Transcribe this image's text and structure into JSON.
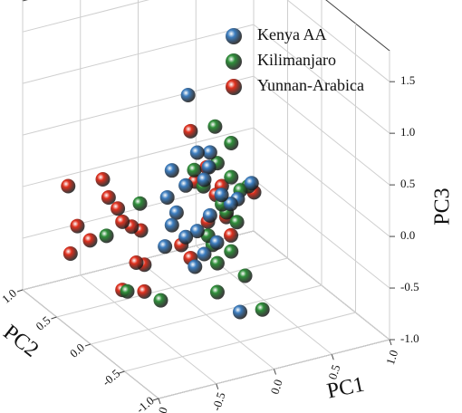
{
  "chart_data": {
    "type": "scatter3d",
    "x_label": "PC1",
    "y_label": "PC2",
    "z_label": "PC3",
    "xlim": [
      -1,
      1
    ],
    "ylim": [
      -1,
      1
    ],
    "zlim": [
      -1,
      1.8
    ],
    "xticks": [
      {
        "value": -1,
        "label": "-1.0"
      },
      {
        "value": -0.5,
        "label": "-0.5"
      },
      {
        "value": 0,
        "label": "0.0"
      },
      {
        "value": 0.5,
        "label": "0.5"
      },
      {
        "value": 1,
        "label": "1.0"
      }
    ],
    "yticks": [
      {
        "value": -1,
        "label": "-1.0"
      },
      {
        "value": -0.5,
        "label": "-0.5"
      },
      {
        "value": 0,
        "label": "0.0"
      },
      {
        "value": 0.5,
        "label": "0.5"
      },
      {
        "value": 1,
        "label": "1.0"
      }
    ],
    "zticks": [
      {
        "value": -1,
        "label": "-1.0"
      },
      {
        "value": -0.5,
        "label": "-0.5"
      },
      {
        "value": 0,
        "label": "0.0"
      },
      {
        "value": 0.5,
        "label": "0.5"
      },
      {
        "value": 1,
        "label": "1.0"
      },
      {
        "value": 1.5,
        "label": "1.5"
      }
    ],
    "grid": true,
    "legend": "top-right",
    "series": [
      {
        "name": "Kenya AA",
        "color": "#3d7ec0",
        "x": [
          -0.45,
          -0.37,
          -0.26,
          -0.59,
          -0.47,
          -0.31,
          -0.63,
          -0.55,
          -0.59,
          -0.47,
          -0.37,
          -0.26,
          -0.16,
          0.1,
          -0.02,
          -0.2,
          -0.31,
          -0.39,
          -0.65,
          0.0,
          -0.27,
          -0.08
        ],
        "y": [
          -0.5,
          -0.5,
          -0.5,
          -0.5,
          -0.5,
          -0.5,
          -0.5,
          -0.5,
          -0.5,
          -0.5,
          -0.5,
          -0.5,
          -0.5,
          -0.5,
          -0.5,
          -0.5,
          -0.5,
          -0.5,
          -0.5,
          -0.5,
          -0.5,
          -0.5
        ],
        "z": [
          1.52,
          0.94,
          0.91,
          0.83,
          0.65,
          0.66,
          0.58,
          0.41,
          0.3,
          0.15,
          0.18,
          0.3,
          0.47,
          0.51,
          0.39,
          0.02,
          -0.06,
          -0.16,
          0.11,
          -0.71,
          0.77,
          0.36
        ]
      },
      {
        "name": "Kilimanjaro",
        "color": "#2f8f3a",
        "x": [
          -0.04,
          0.1,
          -0.02,
          -0.22,
          0.1,
          0.18,
          0.25,
          0.02,
          0.06,
          0.15,
          -0.06,
          -0.02,
          0.1,
          -0.69,
          -0.98,
          -0.8,
          -0.51,
          -0.02,
          0.37,
          0.22,
          -0.14,
          -0.1
        ],
        "y": [
          -0.2,
          -0.2,
          -0.2,
          -0.2,
          -0.2,
          -0.2,
          -0.2,
          -0.2,
          -0.2,
          -0.2,
          -0.2,
          -0.2,
          -0.2,
          -0.2,
          -0.2,
          -0.2,
          -0.2,
          -0.2,
          -0.2,
          -0.2,
          -0.2,
          -0.2
        ],
        "z": [
          0.94,
          0.74,
          0.58,
          0.57,
          0.41,
          0.26,
          0.28,
          0.17,
          0.08,
          -0.04,
          -0.2,
          -0.39,
          -0.31,
          0.38,
          0.15,
          -0.44,
          -0.61,
          -0.67,
          -0.95,
          -0.58,
          0.39,
          -0.1
        ]
      },
      {
        "name": "Yunnan-Arabica",
        "color": "#e0301e",
        "x": [
          -0.9,
          -0.82,
          -0.88,
          -0.71,
          -0.6,
          -0.55,
          -0.47,
          -0.43,
          -0.35,
          -0.31,
          -0.24,
          -0.27,
          0.16,
          0.2,
          0.38,
          0.71,
          0.31,
          0.47,
          0.51,
          0.08,
          0.16,
          -0.43,
          -0.24,
          0.3,
          0.43
        ],
        "y": [
          0.5,
          0.5,
          0.5,
          0.5,
          0.5,
          0.5,
          0.5,
          0.5,
          0.5,
          0.5,
          0.5,
          0.5,
          0.5,
          0.5,
          0.5,
          0.5,
          0.5,
          0.5,
          0.5,
          0.5,
          0.5,
          0.5,
          0.5,
          0.5,
          0.5
        ],
        "z": [
          0.24,
          -0.17,
          -0.42,
          -0.34,
          0.22,
          0.03,
          -0.1,
          -0.24,
          -0.31,
          -0.67,
          -0.71,
          -0.37,
          0.47,
          -0.03,
          -0.21,
          -0.28,
          -0.45,
          -0.45,
          -0.64,
          -0.61,
          -0.76,
          -0.9,
          -0.97,
          0.08,
          -0.14
        ]
      }
    ]
  }
}
